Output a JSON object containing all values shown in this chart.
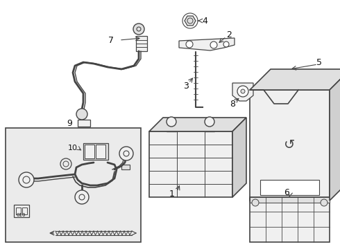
{
  "bg_color": "#ffffff",
  "line_color": "#444444",
  "light_gray": "#cccccc",
  "mid_gray": "#999999",
  "dark_gray": "#555555",
  "fill_light": "#f0f0f0",
  "fill_mid": "#e0e0e0",
  "fill_dark": "#d0d0d0",
  "inset_fill": "#ebebeb",
  "figsize": [
    4.9,
    3.6
  ],
  "dpi": 100
}
